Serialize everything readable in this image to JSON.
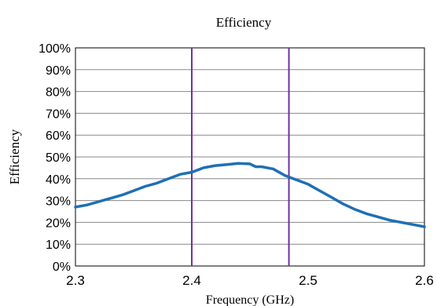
{
  "chart_data": {
    "type": "line",
    "title": "Efficiency",
    "xlabel": "Frequency (GHz)",
    "ylabel": "Efficiency",
    "xlim": [
      2.3,
      2.6
    ],
    "ylim": [
      0,
      100
    ],
    "x_ticks": [
      "2.3",
      "2.4",
      "2.5",
      "2.6"
    ],
    "x_tick_values": [
      2.3,
      2.4,
      2.5,
      2.6
    ],
    "y_ticks": [
      "0%",
      "10%",
      "20%",
      "30%",
      "40%",
      "50%",
      "60%",
      "70%",
      "80%",
      "90%",
      "100%"
    ],
    "y_tick_values": [
      0,
      10,
      20,
      30,
      40,
      50,
      60,
      70,
      80,
      90,
      100
    ],
    "grid": "horizontal",
    "series": [
      {
        "color": "#1f6fb5",
        "x": [
          2.3,
          2.31,
          2.32,
          2.33,
          2.34,
          2.35,
          2.36,
          2.37,
          2.38,
          2.39,
          2.4,
          2.41,
          2.42,
          2.43,
          2.44,
          2.45,
          2.455,
          2.46,
          2.47,
          2.48,
          2.49,
          2.5,
          2.51,
          2.52,
          2.53,
          2.54,
          2.55,
          2.56,
          2.57,
          2.58,
          2.59,
          2.6
        ],
        "y": [
          27,
          28,
          29.5,
          31,
          32.5,
          34.5,
          36.5,
          38,
          40,
          42,
          43,
          45,
          46,
          46.5,
          47,
          46.8,
          45.5,
          45.5,
          44.5,
          41.5,
          39.5,
          37.5,
          34.5,
          31.5,
          28.5,
          26,
          24,
          22.5,
          21,
          20,
          19,
          18
        ]
      }
    ],
    "markers": [
      {
        "x": 2.4,
        "color": "#7030a0"
      },
      {
        "x": 2.4835,
        "color": "#7030a0"
      }
    ]
  }
}
